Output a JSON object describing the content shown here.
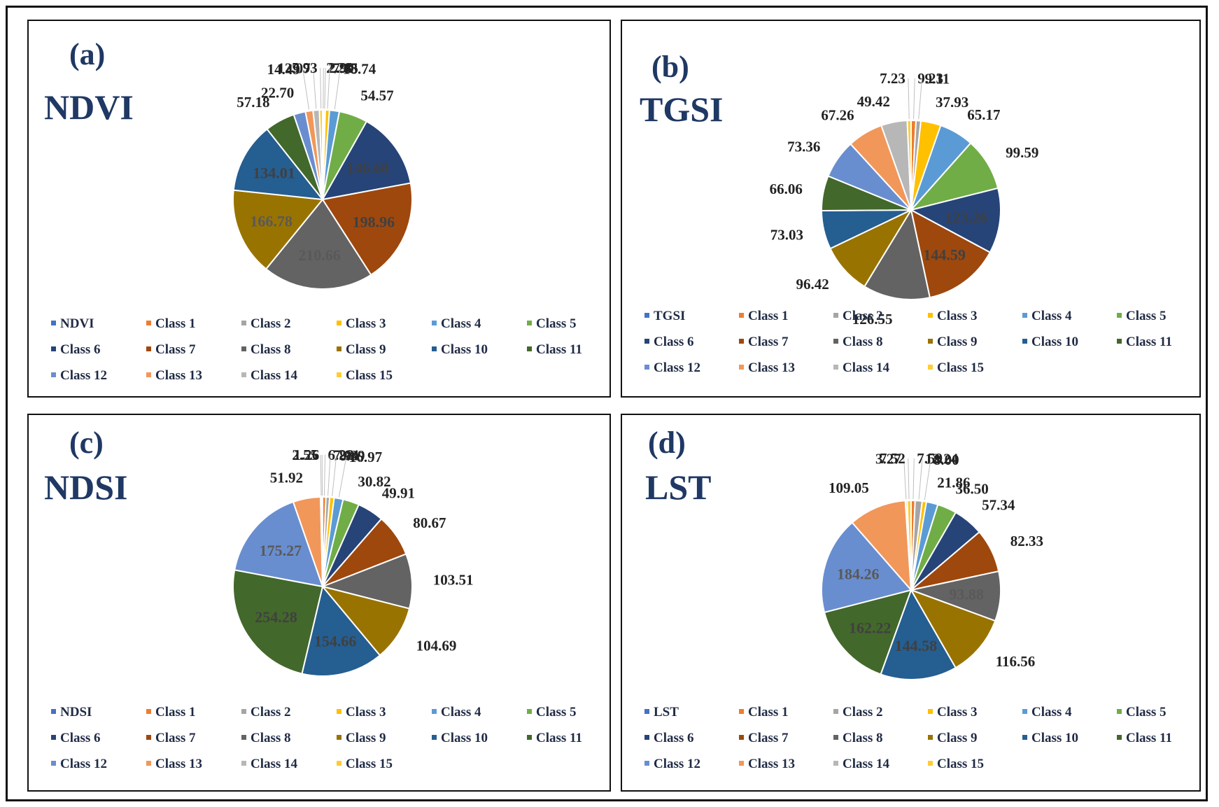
{
  "colors": [
    "#4472C4",
    "#ED7D31",
    "#A5A5A5",
    "#FFC000",
    "#5B9BD5",
    "#70AD47",
    "#264478",
    "#9E480E",
    "#636363",
    "#997300",
    "#255E91",
    "#43682B",
    "#698ED0",
    "#F1975A",
    "#B7B7B7",
    "#FFCD33"
  ],
  "chart_data": [
    {
      "type": "pie",
      "panel_label": "(a)",
      "title": "NDVI",
      "legend": [
        "NDVI",
        "Class 1",
        "Class 2",
        "Class 3",
        "Class 4",
        "Class 5",
        "Class 6",
        "Class 7",
        "Class 8",
        "Class 9",
        "Class 10",
        "Class 11",
        "Class 12",
        "Class 13",
        "Class 14",
        "Class 15"
      ],
      "categories": [
        "Class 1",
        "Class 2",
        "Class 3",
        "Class 4",
        "Class 5",
        "Class 6",
        "Class 7",
        "Class 8",
        "Class 9",
        "Class 10",
        "Class 11",
        "Class 12",
        "Class 13",
        "Class 14",
        "Class 15"
      ],
      "values": [
        2.28,
        2.9,
        7.85,
        18.74,
        54.57,
        146.68,
        198.96,
        210.66,
        166.78,
        134.01,
        57.18,
        22.7,
        14.49,
        12.07,
        5.93
      ],
      "labels": [
        "2.28",
        "2.90",
        "7.85",
        "18.74",
        "54.57",
        "146.68",
        "198.96",
        "210.66",
        "166.78",
        "134.01",
        "57.18",
        "22.70",
        "14.49",
        "12.07",
        "5.93"
      ],
      "inside_threshold": 100
    },
    {
      "type": "pie",
      "panel_label": "(b)",
      "title": "TGSI",
      "legend": [
        "TGSI",
        "Class 1",
        "Class 2",
        "Class 3",
        "Class 4",
        "Class 5",
        "Class 6",
        "Class 7",
        "Class 8",
        "Class 9",
        "Class 10",
        "Class 11",
        "Class 12",
        "Class 13",
        "Class 14",
        "Class 15"
      ],
      "categories": [
        "Class 1",
        "Class 2",
        "Class 3",
        "Class 4",
        "Class 5",
        "Class 6",
        "Class 7",
        "Class 8",
        "Class 9",
        "Class 10",
        "Class 11",
        "Class 12",
        "Class 13",
        "Class 14",
        "Class 15"
      ],
      "values": [
        9.23,
        9.11,
        37.93,
        65.17,
        99.59,
        123.26,
        144.59,
        126.55,
        96.42,
        73.03,
        66.06,
        73.36,
        67.26,
        49.42,
        7.23
      ],
      "labels": [
        "9.23",
        "9.11",
        "37.93",
        "65.17",
        "99.59",
        "123.26",
        "144.59",
        "126.55",
        "96.42",
        "73.03",
        "66.06",
        "73.36",
        "67.26",
        "49.42",
        "7.23"
      ],
      "inside_indices": [
        5,
        6
      ]
    },
    {
      "type": "pie",
      "panel_label": "(c)",
      "title": "NDSI",
      "legend": [
        "NDSI",
        "Class 1",
        "Class 2",
        "Class 3",
        "Class 4",
        "Class 5",
        "Class 6",
        "Class 7",
        "Class 8",
        "Class 9",
        "Class 10",
        "Class 11",
        "Class 12",
        "Class 13",
        "Class 14",
        "Class 15"
      ],
      "categories": [
        "Class 1",
        "Class 2",
        "Class 3",
        "Class 4",
        "Class 5",
        "Class 6",
        "Class 7",
        "Class 8",
        "Class 9",
        "Class 10",
        "Class 11",
        "Class 12",
        "Class 13",
        "Class 14",
        "Class 15"
      ],
      "values": [
        6.28,
        7.04,
        8.39,
        16.97,
        30.82,
        49.91,
        80.67,
        103.51,
        104.69,
        154.66,
        254.28,
        175.27,
        51.92,
        2.55,
        1.26
      ],
      "labels": [
        "6.28",
        "7.04",
        "8.39",
        "16.97",
        "30.82",
        "49.91",
        "80.67",
        "103.51",
        "104.69",
        "154.66",
        "254.28",
        "175.27",
        "51.92",
        "2.55",
        "1.26"
      ],
      "inside_threshold": 150
    },
    {
      "type": "pie",
      "panel_label": "(d)",
      "title": "LST",
      "legend": [
        "LST",
        "Class 1",
        "Class 2",
        "Class 3",
        "Class 4",
        "Class 5",
        "Class 6",
        "Class 7",
        "Class 8",
        "Class 9",
        "Class 10",
        "Class 11",
        "Class 12",
        "Class 13",
        "Class 14",
        "Class 15"
      ],
      "categories": [
        "Class 1",
        "Class 2",
        "Class 3",
        "Class 4",
        "Class 5",
        "Class 6",
        "Class 7",
        "Class 8",
        "Class 9",
        "Class 10",
        "Class 11",
        "Class 12",
        "Class 13",
        "Class 14",
        "Class 15"
      ],
      "values": [
        7.59,
        13.24,
        8.0,
        21.86,
        36.5,
        57.34,
        82.33,
        93.88,
        116.56,
        144.58,
        162.22,
        184.26,
        109.05,
        3.27,
        7.52
      ],
      "labels": [
        "7.59",
        "13.24",
        "8.00",
        "21.86",
        "36.50",
        "57.34",
        "82.33",
        "93.88",
        "116.56",
        "144.58",
        "162.22",
        "184.26",
        "109.05",
        "3.27",
        "7.52"
      ],
      "inside_indices": [
        7,
        9,
        10,
        11
      ]
    }
  ]
}
